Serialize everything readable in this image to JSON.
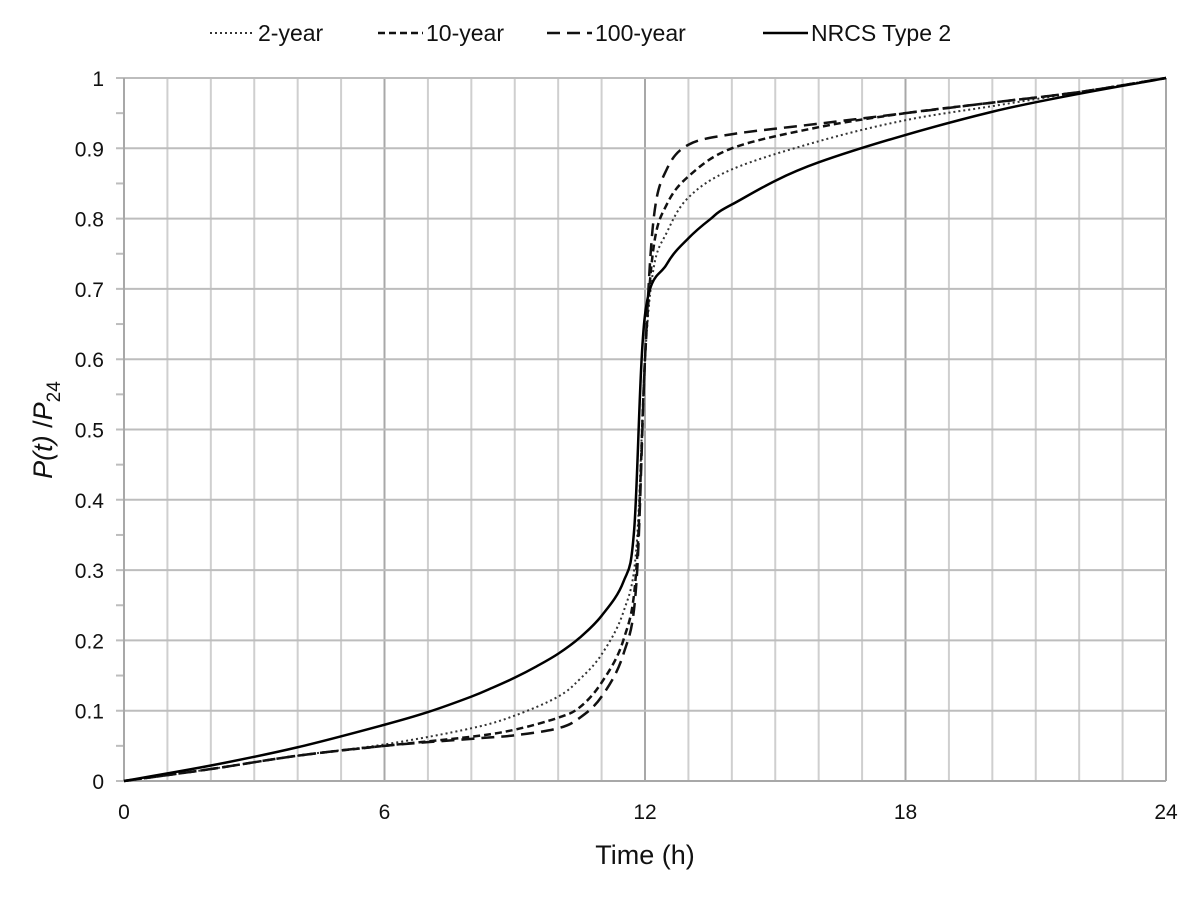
{
  "chart_data": {
    "type": "line",
    "title": "",
    "xlabel": "Time (h)",
    "ylabel_parts": {
      "p": "P",
      "t": "(t)",
      "slash": " /",
      "p2": "P",
      "sub": "24"
    },
    "xlim": [
      0,
      24
    ],
    "ylim": [
      0,
      1
    ],
    "xticks": [
      0,
      6,
      12,
      18,
      24
    ],
    "yticks": [
      0,
      0.1,
      0.2,
      0.3,
      0.4,
      0.5,
      0.6,
      0.7,
      0.8,
      0.9,
      1
    ],
    "grid": true,
    "legend_position": "top",
    "series": [
      {
        "name": "2-year",
        "style": "dotted",
        "color": "#333333",
        "x": [
          0,
          2,
          4,
          6,
          8,
          9,
          10,
          10.5,
          11,
          11.5,
          11.8,
          12,
          12.2,
          12.5,
          13,
          14,
          16,
          18,
          20,
          22,
          24
        ],
        "y": [
          0,
          0.017,
          0.036,
          0.052,
          0.075,
          0.093,
          0.12,
          0.145,
          0.18,
          0.24,
          0.33,
          0.6,
          0.73,
          0.78,
          0.83,
          0.87,
          0.91,
          0.94,
          0.96,
          0.98,
          1
        ]
      },
      {
        "name": "10-year",
        "style": "short-dash",
        "color": "#111111",
        "x": [
          0,
          2,
          4,
          6,
          8,
          9,
          10,
          10.5,
          11,
          11.5,
          11.8,
          12,
          12.2,
          12.5,
          13,
          14,
          16,
          18,
          20,
          22,
          24
        ],
        "y": [
          0,
          0.017,
          0.036,
          0.05,
          0.063,
          0.073,
          0.09,
          0.105,
          0.14,
          0.2,
          0.3,
          0.6,
          0.76,
          0.82,
          0.86,
          0.9,
          0.93,
          0.95,
          0.965,
          0.98,
          1
        ]
      },
      {
        "name": "100-year",
        "style": "long-dash",
        "color": "#111111",
        "x": [
          0,
          2,
          4,
          6,
          8,
          9,
          10,
          10.5,
          11,
          11.5,
          11.8,
          12,
          12.2,
          12.5,
          13,
          14,
          16,
          18,
          20,
          22,
          24
        ],
        "y": [
          0,
          0.017,
          0.036,
          0.05,
          0.06,
          0.065,
          0.075,
          0.09,
          0.12,
          0.18,
          0.28,
          0.6,
          0.8,
          0.87,
          0.905,
          0.92,
          0.935,
          0.95,
          0.965,
          0.98,
          1
        ]
      },
      {
        "name": "NRCS Type 2",
        "style": "solid",
        "color": "#000000",
        "x": [
          0,
          2,
          4,
          6,
          7,
          8,
          8.5,
          9,
          9.5,
          10,
          10.5,
          11,
          11.5,
          11.75,
          12,
          12.5,
          13,
          13.5,
          14,
          16,
          20,
          24
        ],
        "y": [
          0,
          0.022,
          0.048,
          0.08,
          0.098,
          0.12,
          0.133,
          0.147,
          0.163,
          0.181,
          0.204,
          0.235,
          0.283,
          0.357,
          0.663,
          0.735,
          0.772,
          0.799,
          0.82,
          0.88,
          0.952,
          1
        ]
      }
    ]
  }
}
